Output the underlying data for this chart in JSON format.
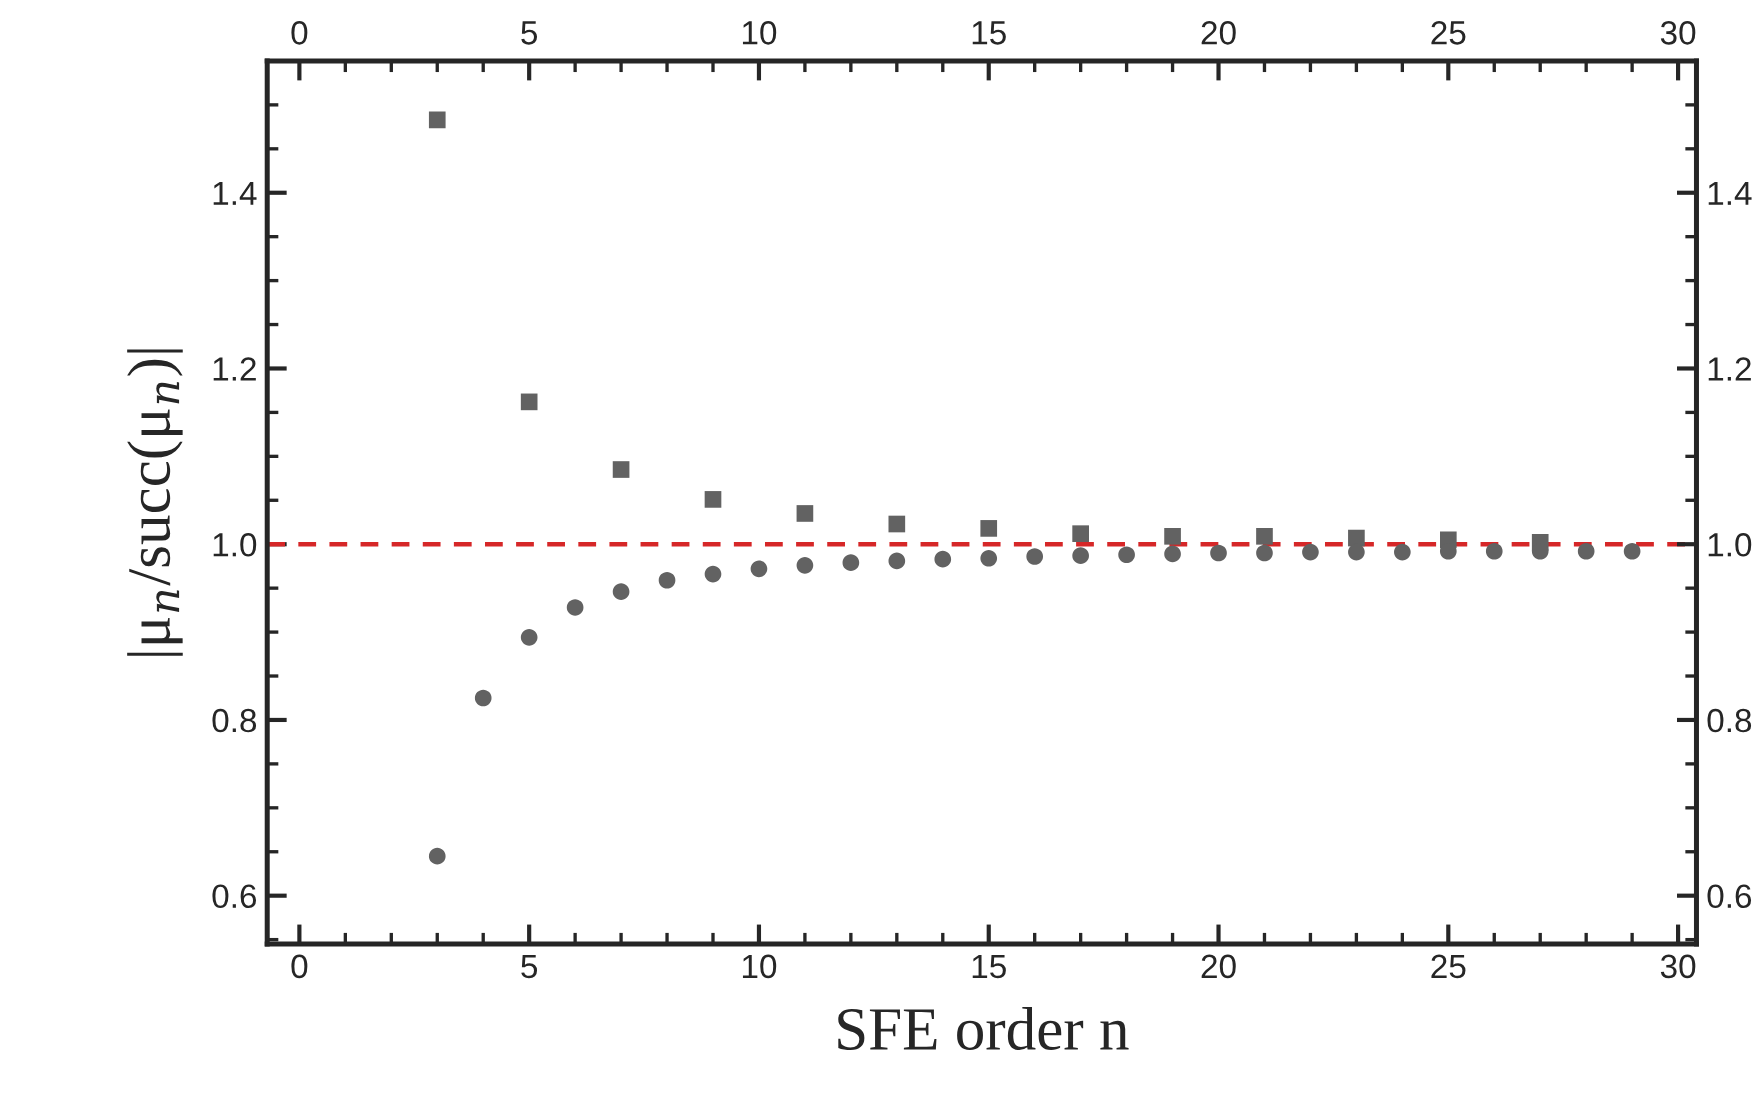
{
  "chart_data": {
    "type": "scatter",
    "xlabel": "SFE order n",
    "ylabel": "|μ$_{n}$/succ(μ$_{n}$)|",
    "series": [
      {
        "color": "#626262",
        "marker": "square",
        "x": [
          3,
          5,
          7,
          9,
          11,
          13,
          15,
          17,
          19,
          21,
          23,
          25,
          27
        ],
        "values": [
          1.483,
          1.162,
          1.085,
          1.051,
          1.035,
          1.023,
          1.018,
          1.012,
          1.009,
          1.009,
          1.007,
          1.005,
          1.002
        ]
      },
      {
        "color": "#626262",
        "marker": "circle",
        "x": [
          3,
          4,
          5,
          6,
          7,
          8,
          9,
          10,
          11,
          12,
          13,
          14,
          15,
          16,
          17,
          18,
          19,
          20,
          21,
          22,
          23,
          24,
          25,
          26,
          27,
          28,
          29
        ],
        "values": [
          0.645,
          0.825,
          0.894,
          0.928,
          0.946,
          0.959,
          0.966,
          0.972,
          0.976,
          0.979,
          0.981,
          0.983,
          0.984,
          0.986,
          0.987,
          0.988,
          0.989,
          0.99,
          0.99,
          0.991,
          0.991,
          0.991,
          0.992,
          0.992,
          0.992,
          0.992,
          0.992
        ]
      }
    ],
    "xlim": [
      -0.7,
      30.4
    ],
    "ylim": [
      0.545,
      1.55
    ],
    "xticks": [
      0,
      {
        "value": 1,
        "label": null
      },
      {
        "value": 2,
        "label": null
      },
      {
        "value": 3,
        "label": null
      },
      {
        "value": 4,
        "label": null
      },
      5,
      {
        "value": 6,
        "label": null
      },
      {
        "value": 7,
        "label": null
      },
      {
        "value": 8,
        "label": null
      },
      {
        "value": 9,
        "label": null
      },
      10,
      {
        "value": 11,
        "label": null
      },
      {
        "value": 12,
        "label": null
      },
      {
        "value": 13,
        "label": null
      },
      {
        "value": 14,
        "label": null
      },
      15,
      {
        "value": 16,
        "label": null
      },
      {
        "value": 17,
        "label": null
      },
      {
        "value": 18,
        "label": null
      },
      {
        "value": 19,
        "label": null
      },
      20,
      {
        "value": 21,
        "label": null
      },
      {
        "value": 22,
        "label": null
      },
      {
        "value": 23,
        "label": null
      },
      {
        "value": 24,
        "label": null
      },
      25,
      {
        "value": 26,
        "label": null
      },
      {
        "value": 27,
        "label": null
      },
      {
        "value": 28,
        "label": null
      },
      {
        "value": 29,
        "label": null
      },
      30
    ],
    "x2lim": [
      -0.7,
      30.4
    ],
    "x2ticks": [
      0,
      {
        "value": 1,
        "label": null
      },
      {
        "value": 2,
        "label": null
      },
      {
        "value": 3,
        "label": null
      },
      {
        "value": 4,
        "label": null
      },
      5,
      {
        "value": 6,
        "label": null
      },
      {
        "value": 7,
        "label": null
      },
      {
        "value": 8,
        "label": null
      },
      {
        "value": 9,
        "label": null
      },
      10,
      {
        "value": 11,
        "label": null
      },
      {
        "value": 12,
        "label": null
      },
      {
        "value": 13,
        "label": null
      },
      {
        "value": 14,
        "label": null
      },
      15,
      {
        "value": 16,
        "label": null
      },
      {
        "value": 17,
        "label": null
      },
      {
        "value": 18,
        "label": null
      },
      {
        "value": 19,
        "label": null
      },
      20,
      {
        "value": 21,
        "label": null
      },
      {
        "value": 22,
        "label": null
      },
      {
        "value": 23,
        "label": null
      },
      {
        "value": 24,
        "label": null
      },
      25,
      {
        "value": 26,
        "label": null
      },
      {
        "value": 27,
        "label": null
      },
      {
        "value": 28,
        "label": null
      },
      {
        "value": 29,
        "label": null
      },
      30
    ],
    "yticks": [
      {
        "value": 0.55,
        "label": null
      },
      {
        "value": 0.6,
        "label": "0.6"
      },
      {
        "value": 0.65,
        "label": null
      },
      {
        "value": 0.7,
        "label": null
      },
      {
        "value": 0.75,
        "label": null
      },
      {
        "value": 0.8,
        "label": "0.8"
      },
      {
        "value": 0.85,
        "label": null
      },
      {
        "value": 0.9,
        "label": null
      },
      {
        "value": 0.95,
        "label": null
      },
      {
        "value": 1.0,
        "label": "1.0"
      },
      {
        "value": 1.05,
        "label": null
      },
      {
        "value": 1.1,
        "label": null
      },
      {
        "value": 1.15,
        "label": null
      },
      {
        "value": 1.2,
        "label": "1.2"
      },
      {
        "value": 1.25,
        "label": null
      },
      {
        "value": 1.3,
        "label": null
      },
      {
        "value": 1.35,
        "label": null
      },
      {
        "value": 1.4,
        "label": "1.4"
      },
      {
        "value": 1.45,
        "label": null
      },
      {
        "value": 1.5,
        "label": null
      }
    ],
    "y2lim": [
      0.545,
      1.55
    ],
    "y2ticks": [
      {
        "value": 0.55,
        "label": null
      },
      {
        "value": 0.6,
        "label": "0.6"
      },
      {
        "value": 0.65,
        "label": null
      },
      {
        "value": 0.7,
        "label": null
      },
      {
        "value": 0.75,
        "label": null
      },
      {
        "value": 0.8,
        "label": "0.8"
      },
      {
        "value": 0.85,
        "label": null
      },
      {
        "value": 0.9,
        "label": null
      },
      {
        "value": 0.95,
        "label": null
      },
      {
        "value": 1.0,
        "label": "1.0"
      },
      {
        "value": 1.05,
        "label": null
      },
      {
        "value": 1.1,
        "label": null
      },
      {
        "value": 1.15,
        "label": null
      },
      {
        "value": 1.2,
        "label": "1.2"
      },
      {
        "value": 1.25,
        "label": null
      },
      {
        "value": 1.3,
        "label": null
      },
      {
        "value": 1.35,
        "label": null
      },
      {
        "value": 1.4,
        "label": "1.4"
      },
      {
        "value": 1.45,
        "label": null
      },
      {
        "value": 1.5,
        "label": null
      }
    ],
    "ref_lines": [
      {
        "axis": "y",
        "value": 1.0,
        "color": "#d62728",
        "line_style": "dashed"
      }
    ],
    "grid": false,
    "legend": false
  }
}
